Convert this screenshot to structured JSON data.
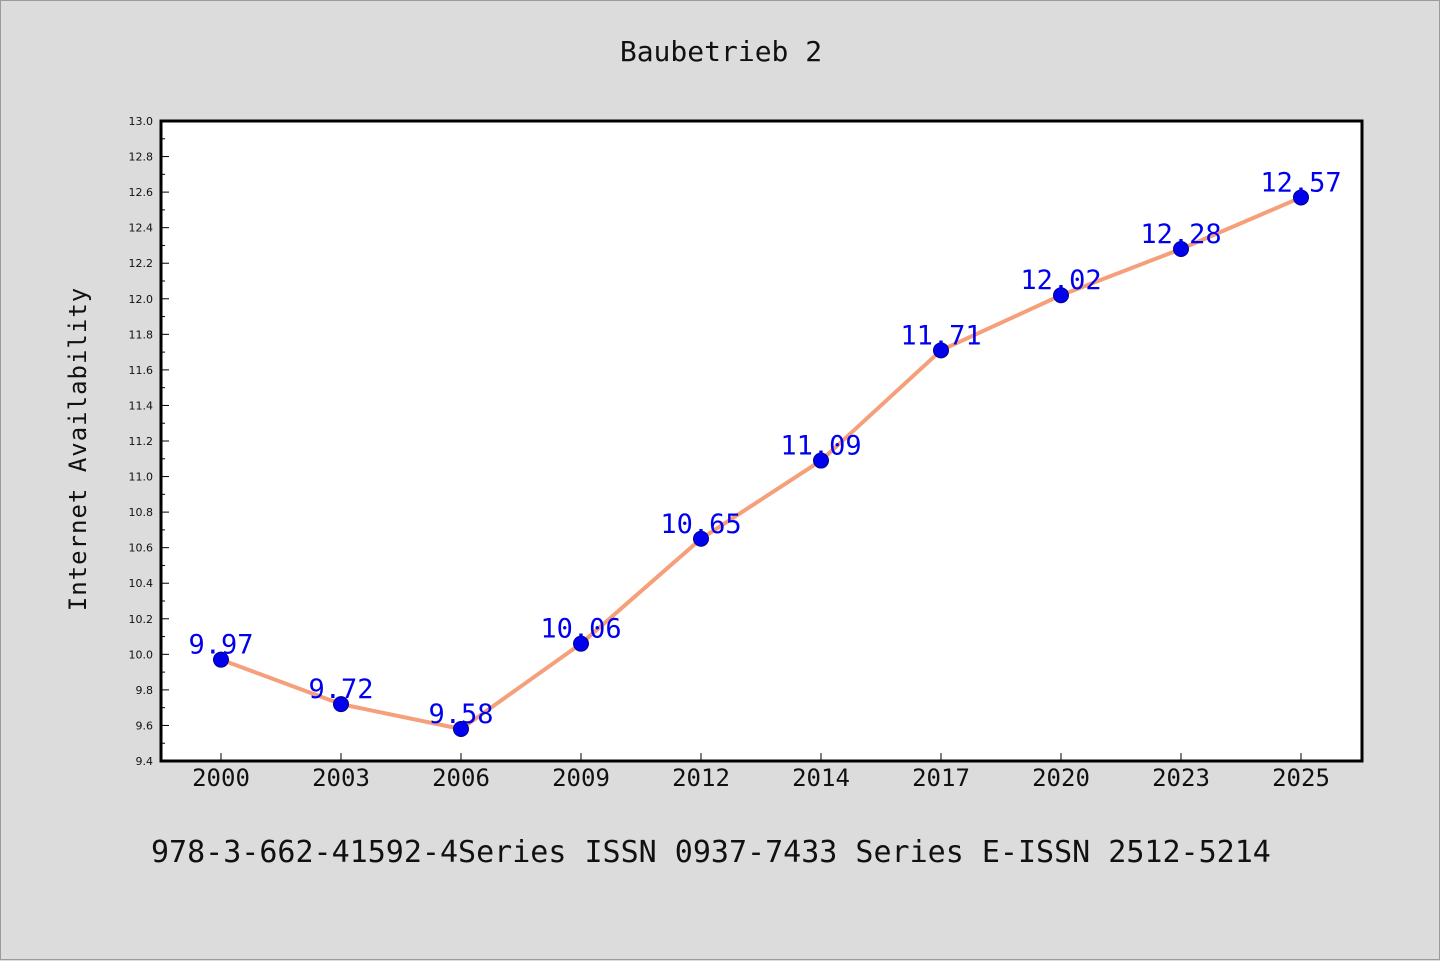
{
  "title": "Baubetrieb 2",
  "footer": "978-3-662-41592-4Series ISSN 0937-7433 Series E-ISSN 2512-5214",
  "colors": {
    "background": "#dcdcdc",
    "plot_area": "#ffffff",
    "line": "#f5a07a",
    "marker": "#0000ee",
    "data_label": "#0000ee"
  },
  "chart_data": {
    "type": "line",
    "title": "Baubetrieb 2",
    "xlabel": "",
    "ylabel": "Internet Availability",
    "categories": [
      "2000",
      "2003",
      "2006",
      "2009",
      "2012",
      "2014",
      "2017",
      "2020",
      "2023",
      "2025"
    ],
    "series": [
      {
        "values": [
          9.97,
          9.72,
          9.58,
          10.06,
          10.65,
          11.09,
          11.71,
          12.02,
          12.28,
          12.57
        ]
      }
    ],
    "data_labels": [
      "9.97",
      "9.72",
      "9.58",
      "10.06",
      "10.65",
      "11.09",
      "11.71",
      "12.02",
      "12.28",
      "12.57"
    ],
    "yticks": [
      "9.4",
      "9.6",
      "9.8",
      "10.0",
      "10.2",
      "10.4",
      "10.6",
      "10.8",
      "11.0",
      "11.2",
      "11.4",
      "11.6",
      "11.8",
      "12.0",
      "12.2",
      "12.4",
      "12.6",
      "12.8",
      "13.0"
    ],
    "ylim": [
      9.4,
      13.0
    ],
    "grid": false,
    "legend": "none"
  }
}
